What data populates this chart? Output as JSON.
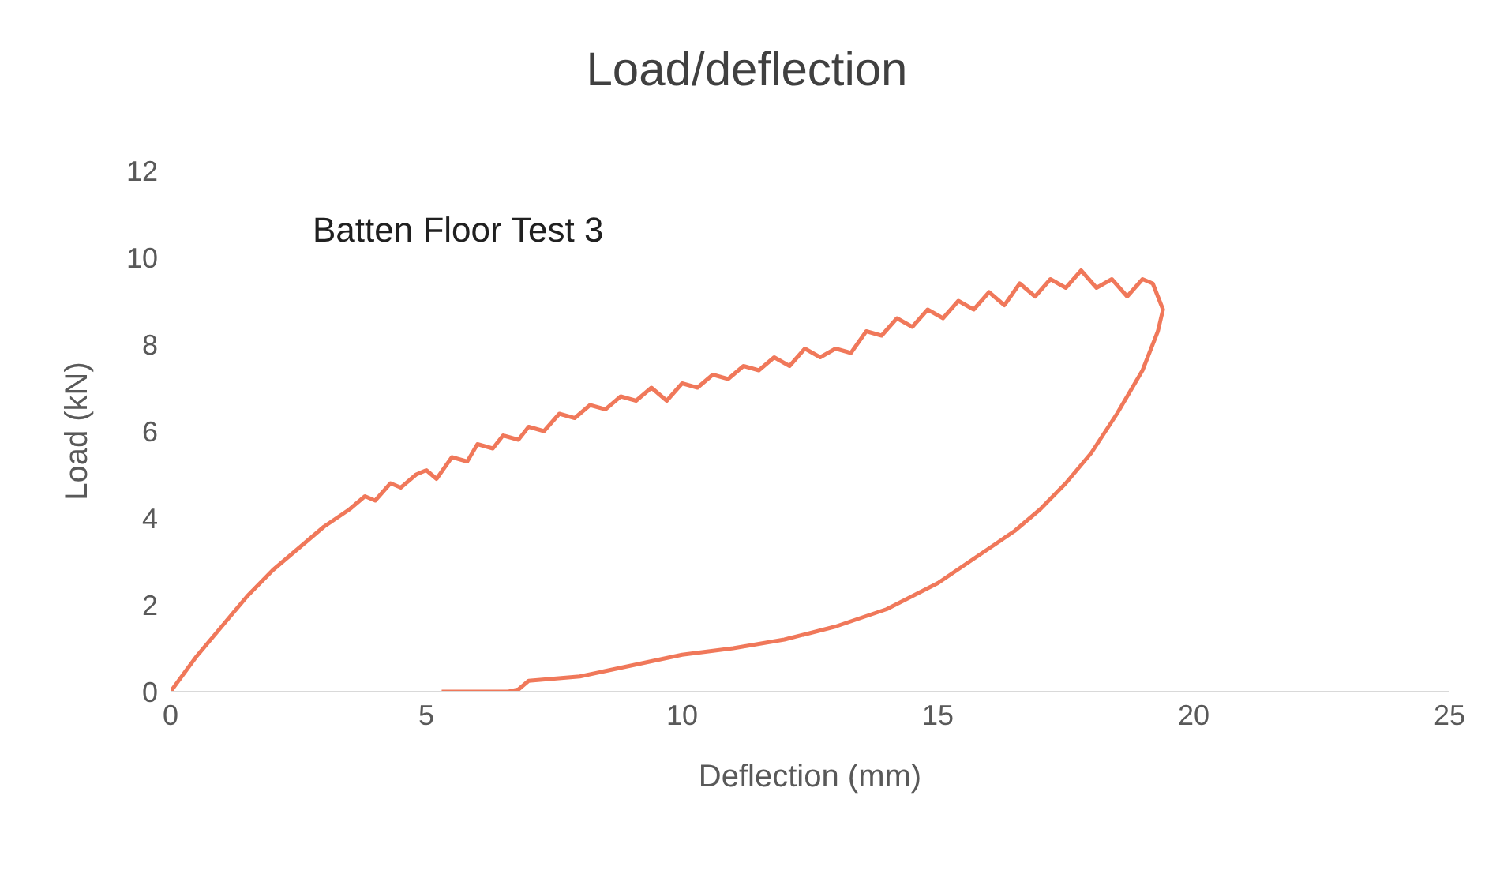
{
  "chart_data": {
    "type": "line",
    "title": "Load/deflection",
    "xlabel": "Deflection (mm)",
    "ylabel": "Load (kN)",
    "annotations": [
      "Batten Floor Test 3"
    ],
    "series": [
      {
        "color": "#f0785a",
        "x": [
          0,
          0.5,
          1,
          1.5,
          2,
          2.5,
          3,
          3.5,
          3.8,
          4,
          4.3,
          4.5,
          4.8,
          5,
          5.2,
          5.5,
          5.8,
          6,
          6.3,
          6.5,
          6.8,
          7,
          7.3,
          7.6,
          7.9,
          8.2,
          8.5,
          8.8,
          9.1,
          9.4,
          9.7,
          10,
          10.3,
          10.6,
          10.9,
          11.2,
          11.5,
          11.8,
          12.1,
          12.4,
          12.7,
          13,
          13.3,
          13.6,
          13.9,
          14.2,
          14.5,
          14.8,
          15.1,
          15.4,
          15.7,
          16,
          16.3,
          16.6,
          16.9,
          17.2,
          17.5,
          17.8,
          18.1,
          18.4,
          18.7,
          19,
          19.2,
          19.4,
          19.3,
          19,
          18.5,
          18,
          17.5,
          17,
          16.5,
          16,
          15.5,
          15,
          14,
          13,
          12,
          11,
          10,
          9,
          8,
          7.5,
          7,
          6.8,
          6.6,
          6.3,
          6,
          5.6,
          5.3
        ],
        "values": [
          0,
          0.8,
          1.5,
          2.2,
          2.8,
          3.3,
          3.8,
          4.2,
          4.5,
          4.4,
          4.8,
          4.7,
          5.0,
          5.1,
          4.9,
          5.4,
          5.3,
          5.7,
          5.6,
          5.9,
          5.8,
          6.1,
          6.0,
          6.4,
          6.3,
          6.6,
          6.5,
          6.8,
          6.7,
          7.0,
          6.7,
          7.1,
          7.0,
          7.3,
          7.2,
          7.5,
          7.4,
          7.7,
          7.5,
          7.9,
          7.7,
          7.9,
          7.8,
          8.3,
          8.2,
          8.6,
          8.4,
          8.8,
          8.6,
          9.0,
          8.8,
          9.2,
          8.9,
          9.4,
          9.1,
          9.5,
          9.3,
          9.7,
          9.3,
          9.5,
          9.1,
          9.5,
          9.4,
          8.8,
          8.3,
          7.4,
          6.4,
          5.5,
          4.8,
          4.2,
          3.7,
          3.3,
          2.9,
          2.5,
          1.9,
          1.5,
          1.2,
          1.0,
          0.85,
          0.6,
          0.35,
          0.3,
          0.25,
          0.05,
          0,
          0,
          0,
          0,
          0
        ]
      }
    ],
    "xlim": [
      0,
      25
    ],
    "xticks": [
      0,
      5,
      10,
      15,
      20,
      25
    ],
    "ylim": [
      0,
      12
    ],
    "yticks": [
      0,
      2,
      4,
      6,
      8,
      10,
      12
    ],
    "grid": false,
    "marker": "none",
    "line_style": "solid"
  }
}
